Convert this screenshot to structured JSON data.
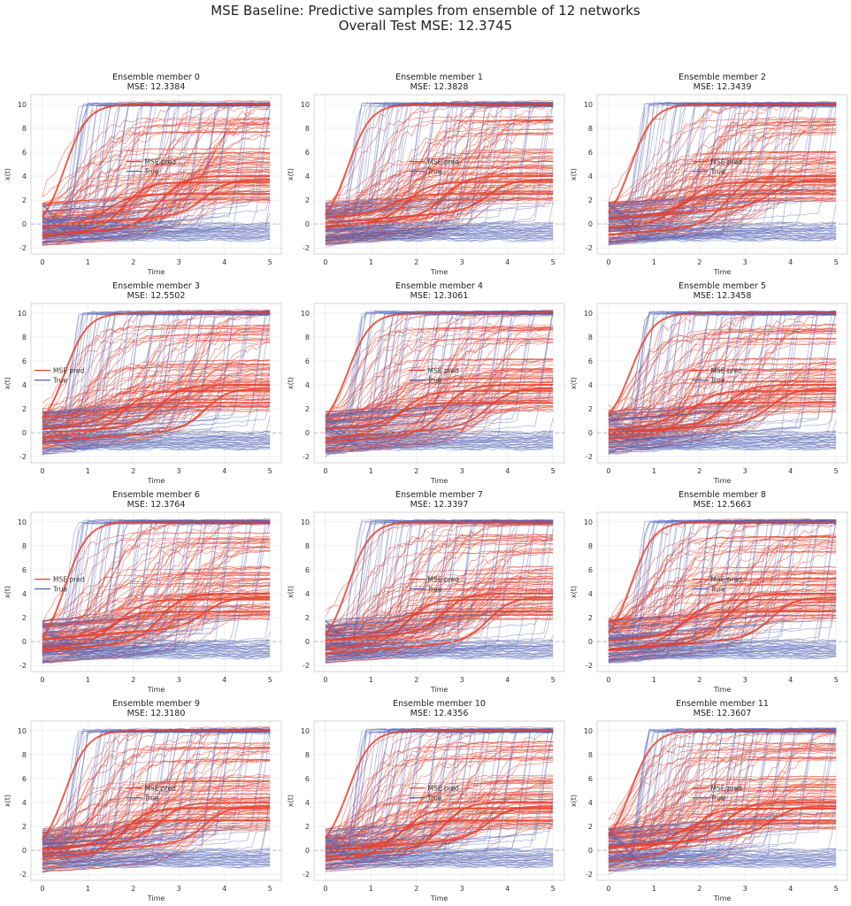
{
  "title_line1": "MSE Baseline: Predictive samples from ensemble of 12 networks",
  "title_line2": "Overall Test MSE: 12.3745",
  "colors": {
    "pred": "#e8412c",
    "true": "#5564b5",
    "zero": "#bbbbbb"
  },
  "chart_data": [
    {
      "type": "line",
      "title": "Ensemble member 0",
      "mse_label": "MSE: 12.3384",
      "xlabel": "Time",
      "ylabel": "x(t)",
      "xlim": [
        -0.25,
        5.25
      ],
      "ylim": [
        -2.5,
        10.8
      ],
      "xticks": [
        0,
        1,
        2,
        3,
        4,
        5
      ],
      "yticks": [
        -2,
        0,
        2,
        4,
        6,
        8,
        10
      ],
      "legend": [
        "MSE pred",
        "True"
      ],
      "legend_loc": "center"
    },
    {
      "type": "line",
      "title": "Ensemble member 1",
      "mse_label": "MSE: 12.3828",
      "xlabel": "Time",
      "ylabel": "x(t)",
      "xlim": [
        -0.25,
        5.25
      ],
      "ylim": [
        -2.5,
        10.8
      ],
      "xticks": [
        0,
        1,
        2,
        3,
        4,
        5
      ],
      "yticks": [
        -2,
        0,
        2,
        4,
        6,
        8,
        10
      ],
      "legend": [
        "MSE pred",
        "True"
      ],
      "legend_loc": "center"
    },
    {
      "type": "line",
      "title": "Ensemble member 2",
      "mse_label": "MSE: 12.3439",
      "xlabel": "Time",
      "ylabel": "x(t)",
      "xlim": [
        -0.25,
        5.25
      ],
      "ylim": [
        -2.5,
        10.8
      ],
      "xticks": [
        0,
        1,
        2,
        3,
        4,
        5
      ],
      "yticks": [
        -2,
        0,
        2,
        4,
        6,
        8,
        10
      ],
      "legend": [
        "MSE pred",
        "True"
      ],
      "legend_loc": "center"
    },
    {
      "type": "line",
      "title": "Ensemble member 3",
      "mse_label": "MSE: 12.5502",
      "xlabel": "Time",
      "ylabel": "x(t)",
      "xlim": [
        -0.25,
        5.25
      ],
      "ylim": [
        -2.5,
        10.8
      ],
      "xticks": [
        0,
        1,
        2,
        3,
        4,
        5
      ],
      "yticks": [
        -2,
        0,
        2,
        4,
        6,
        8,
        10
      ],
      "legend": [
        "MSE pred",
        "True"
      ],
      "legend_loc": "center-left"
    },
    {
      "type": "line",
      "title": "Ensemble member 4",
      "mse_label": "MSE: 12.3061",
      "xlabel": "Time",
      "ylabel": "x(t)",
      "xlim": [
        -0.25,
        5.25
      ],
      "ylim": [
        -2.5,
        10.8
      ],
      "xticks": [
        0,
        1,
        2,
        3,
        4,
        5
      ],
      "yticks": [
        -2,
        0,
        2,
        4,
        6,
        8,
        10
      ],
      "legend": [
        "MSE pred",
        "True"
      ],
      "legend_loc": "center"
    },
    {
      "type": "line",
      "title": "Ensemble member 5",
      "mse_label": "MSE: 12.3458",
      "xlabel": "Time",
      "ylabel": "x(t)",
      "xlim": [
        -0.25,
        5.25
      ],
      "ylim": [
        -2.5,
        10.8
      ],
      "xticks": [
        0,
        1,
        2,
        3,
        4,
        5
      ],
      "yticks": [
        -2,
        0,
        2,
        4,
        6,
        8,
        10
      ],
      "legend": [
        "MSE pred",
        "True"
      ],
      "legend_loc": "center"
    },
    {
      "type": "line",
      "title": "Ensemble member 6",
      "mse_label": "MSE: 12.3764",
      "xlabel": "Time",
      "ylabel": "x(t)",
      "xlim": [
        -0.25,
        5.25
      ],
      "ylim": [
        -2.5,
        10.8
      ],
      "xticks": [
        0,
        1,
        2,
        3,
        4,
        5
      ],
      "yticks": [
        -2,
        0,
        2,
        4,
        6,
        8,
        10
      ],
      "legend": [
        "MSE pred",
        "True"
      ],
      "legend_loc": "center-left"
    },
    {
      "type": "line",
      "title": "Ensemble member 7",
      "mse_label": "MSE: 12.3397",
      "xlabel": "Time",
      "ylabel": "x(t)",
      "xlim": [
        -0.25,
        5.25
      ],
      "ylim": [
        -2.5,
        10.8
      ],
      "xticks": [
        0,
        1,
        2,
        3,
        4,
        5
      ],
      "yticks": [
        -2,
        0,
        2,
        4,
        6,
        8,
        10
      ],
      "legend": [
        "MSE pred",
        "True"
      ],
      "legend_loc": "center"
    },
    {
      "type": "line",
      "title": "Ensemble member 8",
      "mse_label": "MSE: 12.5663",
      "xlabel": "Time",
      "ylabel": "x(t)",
      "xlim": [
        -0.25,
        5.25
      ],
      "ylim": [
        -2.5,
        10.8
      ],
      "xticks": [
        0,
        1,
        2,
        3,
        4,
        5
      ],
      "yticks": [
        -2,
        0,
        2,
        4,
        6,
        8,
        10
      ],
      "legend": [
        "MSE pred",
        "True"
      ],
      "legend_loc": "center"
    },
    {
      "type": "line",
      "title": "Ensemble member 9",
      "mse_label": "MSE: 12.3180",
      "xlabel": "Time",
      "ylabel": "x(t)",
      "xlim": [
        -0.25,
        5.25
      ],
      "ylim": [
        -2.5,
        10.8
      ],
      "xticks": [
        0,
        1,
        2,
        3,
        4,
        5
      ],
      "yticks": [
        -2,
        0,
        2,
        4,
        6,
        8,
        10
      ],
      "legend": [
        "MSE pred",
        "True"
      ],
      "legend_loc": "center"
    },
    {
      "type": "line",
      "title": "Ensemble member 10",
      "mse_label": "MSE: 12.4356",
      "xlabel": "Time",
      "ylabel": "x(t)",
      "xlim": [
        -0.25,
        5.25
      ],
      "ylim": [
        -2.5,
        10.8
      ],
      "xticks": [
        0,
        1,
        2,
        3,
        4,
        5
      ],
      "yticks": [
        -2,
        0,
        2,
        4,
        6,
        8,
        10
      ],
      "legend": [
        "MSE pred",
        "True"
      ],
      "legend_loc": "center"
    },
    {
      "type": "line",
      "title": "Ensemble member 11",
      "mse_label": "MSE: 12.3607",
      "xlabel": "Time",
      "ylabel": "x(t)",
      "xlim": [
        -0.25,
        5.25
      ],
      "ylim": [
        -2.5,
        10.8
      ],
      "xticks": [
        0,
        1,
        2,
        3,
        4,
        5
      ],
      "yticks": [
        -2,
        0,
        2,
        4,
        6,
        8,
        10
      ],
      "legend": [
        "MSE pred",
        "True"
      ],
      "legend_loc": "center"
    }
  ],
  "true_trajectories": {
    "description_note": "Ground-truth curves: fraction jump to ~10 at various times, others stay near -1..0",
    "jump_levels": [
      10.0,
      9.9,
      10.1
    ],
    "jump_times": [
      0.45,
      0.55,
      0.7,
      0.9,
      1.1,
      1.3,
      1.5,
      1.8,
      2.1,
      2.4,
      2.6,
      2.9,
      3.2,
      3.5,
      3.8,
      4.2,
      4.6,
      4.9
    ],
    "low_levels": [
      -1.3,
      -1.1,
      -0.9,
      -0.7,
      -0.5,
      -0.3,
      0.0
    ]
  },
  "pred_trajectories": {
    "plateau_levels": [
      10.0,
      8.8,
      8.4,
      7.7,
      6.0,
      5.5,
      5.0,
      4.5,
      4.0,
      3.5,
      3.0,
      2.5,
      2.0
    ]
  }
}
